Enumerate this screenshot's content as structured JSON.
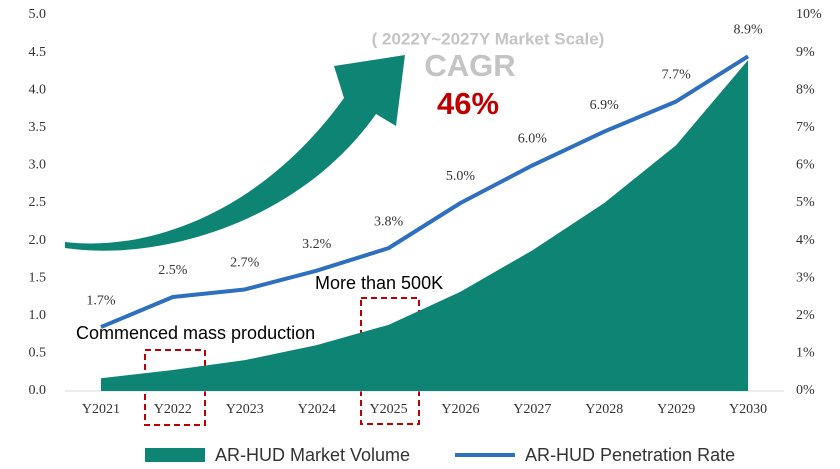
{
  "chart_data": {
    "type": "combo",
    "categories": [
      "Y2021",
      "Y2022",
      "Y2023",
      "Y2024",
      "Y2025",
      "Y2026",
      "Y2027",
      "Y2028",
      "Y2029",
      "Y2030"
    ],
    "series": [
      {
        "name": "AR-HUD Market Volume",
        "type": "area",
        "axis": "y",
        "color": "#0e8574",
        "values": [
          0.17,
          0.28,
          0.41,
          0.61,
          0.88,
          1.32,
          1.87,
          2.5,
          3.27,
          4.4
        ]
      },
      {
        "name": "AR-HUD Penetration Rate",
        "type": "line",
        "axis": "y2",
        "color": "#2e6fbe",
        "values": [
          1.7,
          2.5,
          2.7,
          3.2,
          3.8,
          5.0,
          6.0,
          6.9,
          7.7,
          8.9
        ],
        "value_labels": [
          "1.7%",
          "2.5%",
          "2.7%",
          "3.2%",
          "3.8%",
          "5.0%",
          "6.0%",
          "6.9%",
          "7.7%",
          "8.9%"
        ]
      }
    ],
    "ylim": [
      0,
      5
    ],
    "yticks": [
      {
        "value": 0,
        "label": "0.0"
      },
      {
        "value": 0.5,
        "label": "0.5"
      },
      {
        "value": 1,
        "label": "1.0"
      },
      {
        "value": 1.5,
        "label": "1.5"
      },
      {
        "value": 2,
        "label": "2.0"
      },
      {
        "value": 2.5,
        "label": "2.5"
      },
      {
        "value": 3,
        "label": "3.0"
      },
      {
        "value": 3.5,
        "label": "3.5"
      },
      {
        "value": 4,
        "label": "4.0"
      },
      {
        "value": 4.5,
        "label": "4.5"
      },
      {
        "value": 5,
        "label": "5.0"
      }
    ],
    "y2lim": [
      0,
      10
    ],
    "y2ticks": [
      {
        "value": 0,
        "label": "0%"
      },
      {
        "value": 1,
        "label": "1%"
      },
      {
        "value": 2,
        "label": "2%"
      },
      {
        "value": 3,
        "label": "3%"
      },
      {
        "value": 4,
        "label": "4%"
      },
      {
        "value": 5,
        "label": "5%"
      },
      {
        "value": 6,
        "label": "6%"
      },
      {
        "value": 7,
        "label": "7%"
      },
      {
        "value": 8,
        "label": "8%"
      },
      {
        "value": 9,
        "label": "9%"
      },
      {
        "value": 10,
        "label": "10%"
      }
    ],
    "grid": false,
    "legend": "bottom",
    "annotations": [
      "( 2022Y~2027Y Market Scale)",
      "CAGR",
      "46%",
      "More than 500K",
      "Commenced mass production"
    ]
  }
}
